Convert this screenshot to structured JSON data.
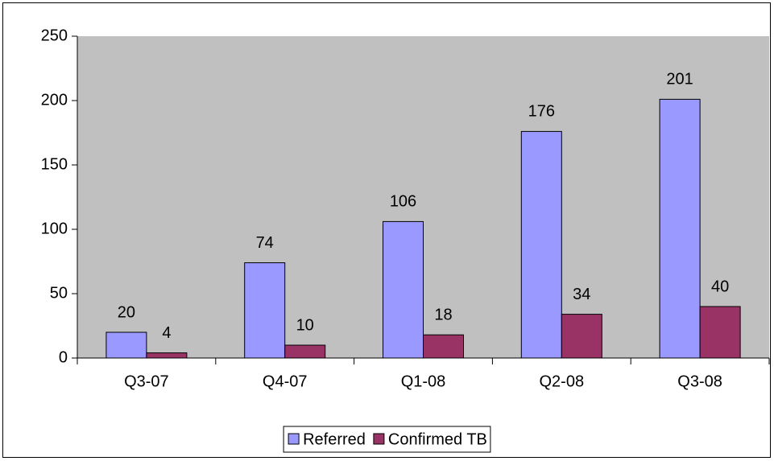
{
  "chart_data": {
    "type": "bar",
    "categories": [
      "Q3-07",
      "Q4-07",
      "Q1-08",
      "Q2-08",
      "Q3-08"
    ],
    "series": [
      {
        "name": "Referred",
        "color": "#9999ff",
        "values": [
          20,
          74,
          106,
          176,
          201
        ]
      },
      {
        "name": "Confirmed TB",
        "color": "#993366",
        "values": [
          4,
          10,
          18,
          34,
          40
        ]
      }
    ],
    "ylim": [
      0,
      250
    ],
    "yticks": [
      0,
      50,
      100,
      150,
      200,
      250
    ],
    "plot_background": "#c0c0c0",
    "legend": "bottom"
  }
}
